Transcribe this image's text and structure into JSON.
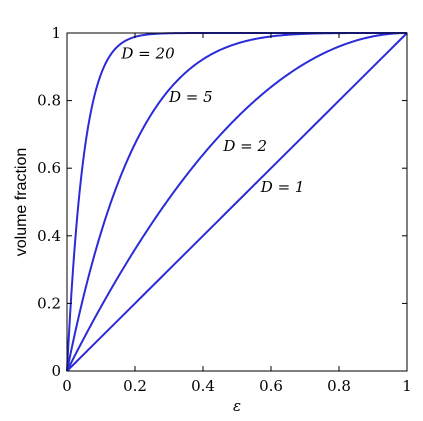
{
  "chart_data": {
    "type": "line",
    "title": "",
    "xlabel": "ε",
    "ylabel": "volume fraction",
    "xlim": [
      0,
      1
    ],
    "ylim": [
      0,
      1
    ],
    "grid": false,
    "line_color": "#2b2bd9",
    "x_ticks": [
      0,
      0.2,
      0.4,
      0.6,
      0.8,
      1
    ],
    "x_tick_labels": [
      "0",
      "0.2",
      "0.4",
      "0.6",
      "0.8",
      "1"
    ],
    "y_ticks": [
      0,
      0.2,
      0.4,
      0.6,
      0.8,
      1
    ],
    "y_tick_labels": [
      "0",
      "0.2",
      "0.4",
      "0.6",
      "0.8",
      "1"
    ],
    "formula": "1 - (1 - ε)^D",
    "series": [
      {
        "D": 1,
        "label": "D = 1",
        "label_at": [
          0.57,
          0.545
        ]
      },
      {
        "D": 2,
        "label": "D = 2",
        "label_at": [
          0.46,
          0.665
        ]
      },
      {
        "D": 5,
        "label": "D = 5",
        "label_at": [
          0.3,
          0.81
        ]
      },
      {
        "D": 20,
        "label": "D = 20",
        "label_at": [
          0.16,
          0.94
        ]
      }
    ]
  }
}
